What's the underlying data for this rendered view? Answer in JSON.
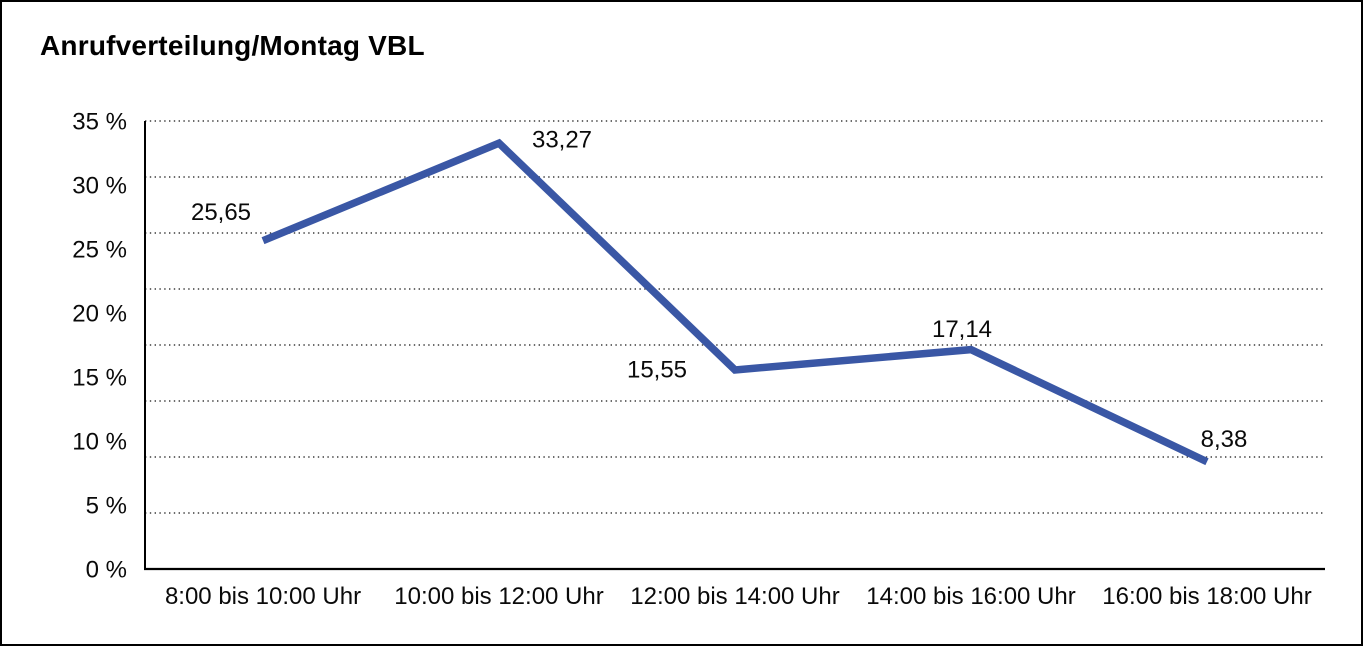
{
  "window": {
    "background": "#ffffff",
    "border_color": "#000000"
  },
  "chart_data": {
    "type": "line",
    "title": "Anrufverteilung/Montag VBL",
    "categories": [
      "8:00 bis 10:00 Uhr",
      "10:00 bis 12:00 Uhr",
      "12:00 bis 14:00 Uhr",
      "14:00 bis 16:00 Uhr",
      "16:00 bis 18:00 Uhr"
    ],
    "values": [
      25.65,
      33.27,
      15.55,
      17.14,
      8.38
    ],
    "value_labels": [
      "25,65",
      "33,27",
      "15,55",
      "17,14",
      "8,38"
    ],
    "unit": "%",
    "xlabel": "",
    "ylabel": "",
    "ylim": [
      0,
      35
    ],
    "y_tick_step": 5,
    "y_tick_labels": [
      "0 %",
      "5 %",
      "10 %",
      "15 %",
      "20 %",
      "25 %",
      "30 %",
      "35 %"
    ],
    "grid": "horizontal-dotted",
    "gridline_count": 8,
    "legend": "none",
    "series_name": "",
    "line_color": "#3A57A5",
    "axis_color": "#000000",
    "grid_color": "#3c3c3c",
    "text_color": "#0a0a0a"
  }
}
